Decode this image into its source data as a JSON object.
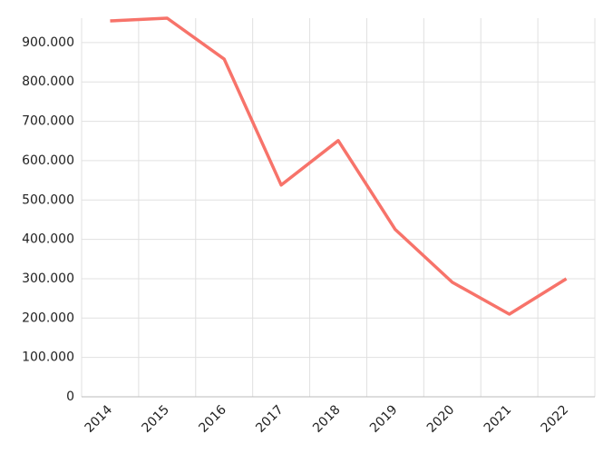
{
  "chart_data": {
    "type": "line",
    "categories": [
      "2014",
      "2015",
      "2016",
      "2017",
      "2018",
      "2019",
      "2020",
      "2021",
      "2022"
    ],
    "values": [
      955000,
      962000,
      858000,
      538000,
      651000,
      425000,
      291000,
      210000,
      300000
    ],
    "color": "#f7736a",
    "ylim": [
      0,
      962000
    ],
    "yticks": [
      0,
      {
        "value": 100000,
        "label": "100.000"
      },
      {
        "value": 200000,
        "label": "200.000"
      },
      {
        "value": 300000,
        "label": "300.000"
      },
      {
        "value": 400000,
        "label": "400.000"
      },
      {
        "value": 500000,
        "label": "500.000"
      },
      {
        "value": 600000,
        "label": "600.000"
      },
      {
        "value": 700000,
        "label": "700.000"
      },
      {
        "value": 800000,
        "label": "800.000"
      },
      {
        "value": 900000,
        "label": "900.000"
      }
    ],
    "grid": true
  }
}
